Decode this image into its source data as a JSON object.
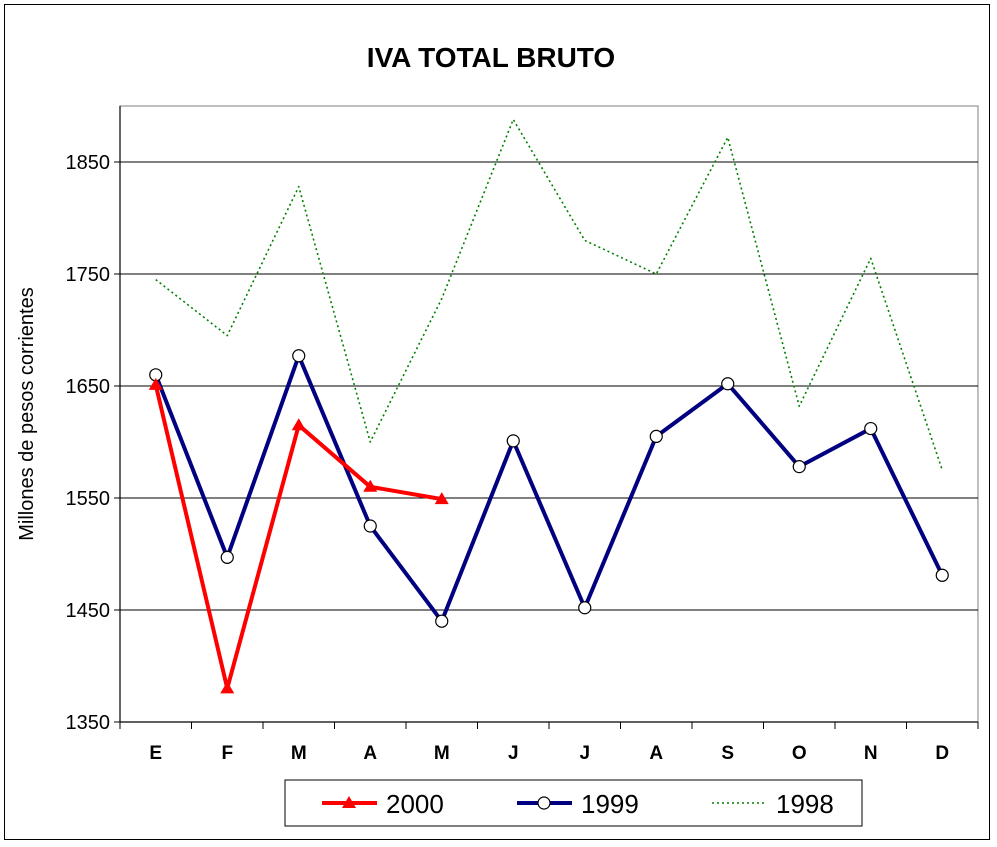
{
  "chart_data": {
    "type": "line",
    "title": "IVA TOTAL BRUTO",
    "xlabel": "",
    "ylabel": "Millones de pesos corrientes",
    "categories": [
      "E",
      "F",
      "M",
      "A",
      "M",
      "J",
      "J",
      "A",
      "S",
      "O",
      "N",
      "D"
    ],
    "ylim": [
      1350,
      1900
    ],
    "yticks": [
      1350,
      1450,
      1550,
      1650,
      1750,
      1850
    ],
    "grid": true,
    "legend_position": "bottom",
    "series": [
      {
        "name": "2000",
        "color": "#ff0000",
        "style": "solid",
        "marker": "triangle",
        "values": [
          1651,
          1380,
          1615,
          1560,
          1549,
          null,
          null,
          null,
          null,
          null,
          null,
          null
        ]
      },
      {
        "name": "1999",
        "color": "#000080",
        "style": "solid",
        "marker": "circle",
        "values": [
          1660,
          1497,
          1677,
          1525,
          1440,
          1601,
          1452,
          1605,
          1652,
          1578,
          1612,
          1481
        ]
      },
      {
        "name": "1998",
        "color": "#008000",
        "style": "dotted",
        "marker": "none",
        "values": [
          1745,
          1695,
          1828,
          1600,
          1728,
          1888,
          1780,
          1750,
          1872,
          1632,
          1764,
          1575
        ]
      }
    ]
  }
}
